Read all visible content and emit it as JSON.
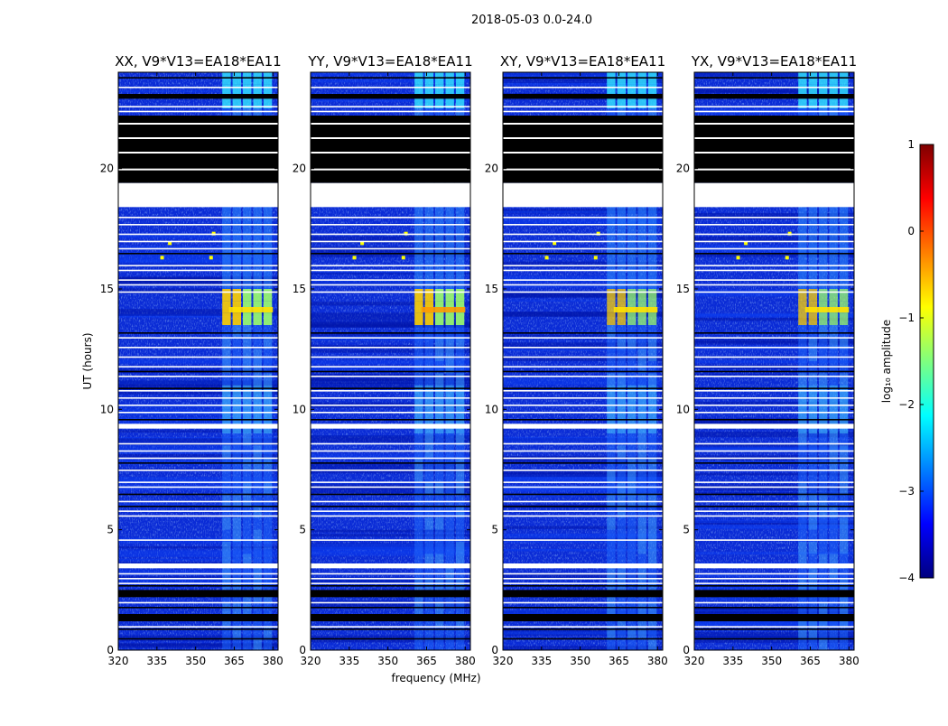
{
  "chart_data": {
    "type": "heatmap",
    "suptitle": "2018-05-03 0.0-24.0",
    "xlabel": "frequency (MHz)",
    "ylabel": "UT (hours)",
    "xlim": [
      320,
      382
    ],
    "ylim": [
      0,
      24
    ],
    "xticks": [
      "320",
      "335",
      "350",
      "365",
      "380"
    ],
    "yticks": [
      "0",
      "5",
      "10",
      "15",
      "20"
    ],
    "rfi_bands_mhz": [
      [
        360,
        364
      ],
      [
        364,
        368
      ],
      [
        368,
        372
      ],
      [
        372,
        376
      ],
      [
        376,
        380
      ]
    ],
    "flagged_black_ut": [
      [
        19.4,
        22.2
      ],
      [
        22.9,
        23.1
      ],
      [
        1.2,
        1.5
      ],
      [
        2.2,
        2.5
      ]
    ],
    "flagged_white_ut": [
      [
        18.4,
        19.4
      ],
      [
        9.2,
        9.4
      ],
      [
        3.4,
        3.6
      ]
    ],
    "panels": [
      {
        "title": "XX, V9*V13=EA18*EA11"
      },
      {
        "title": "YY, V9*V13=EA18*EA11"
      },
      {
        "title": "XY, V9*V13=EA18*EA11"
      },
      {
        "title": "YX, V9*V13=EA18*EA11"
      }
    ],
    "colorbar": {
      "label": "log₁₀ amplitude",
      "range": [
        -4,
        1
      ],
      "ticks": [
        "1",
        "0",
        "−1",
        "−2",
        "−3",
        "−4"
      ],
      "colormap": [
        "#00007f",
        "#0000ff",
        "#007fff",
        "#00ffff",
        "#7fff7f",
        "#ffff00",
        "#ff7f00",
        "#ff0000",
        "#7f0000"
      ]
    }
  }
}
